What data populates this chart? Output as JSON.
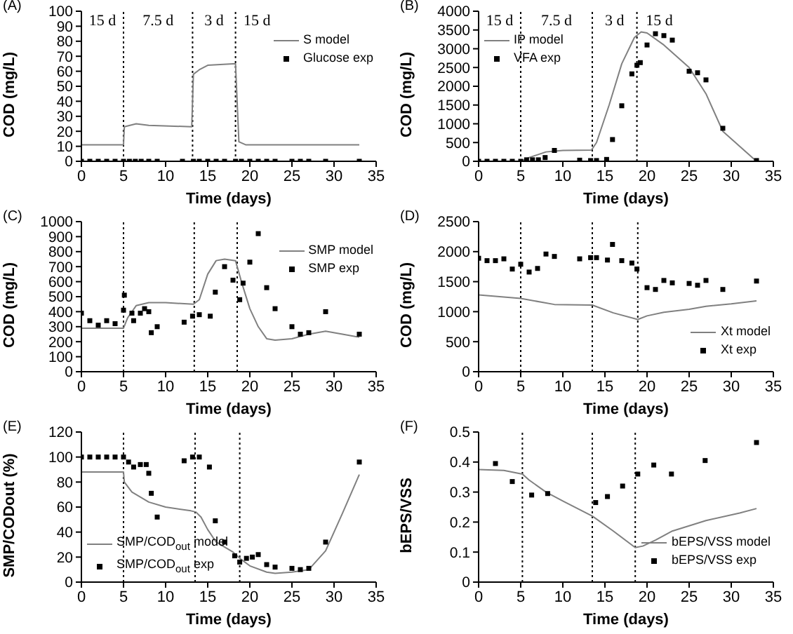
{
  "chart_data": [
    {
      "type": "line",
      "title": "(A)",
      "xlabel": "Time (days)",
      "ylabel": "COD (mg/L)",
      "xlim": [
        0,
        35
      ],
      "xticks": [
        0,
        5,
        10,
        15,
        20,
        25,
        30,
        35
      ],
      "ylim": [
        0,
        100
      ],
      "yticks": [
        0,
        10,
        20,
        30,
        40,
        50,
        60,
        70,
        80,
        90,
        100
      ],
      "grid": false,
      "legend": "top right",
      "annotations": [
        "15 d",
        "7.5 d",
        "3 d",
        "15 d"
      ],
      "ref_lines": [
        {
          "axis": "x",
          "value": 5,
          "color": "#000000",
          "line_style": "dotted"
        },
        {
          "axis": "x",
          "value": 13.2,
          "color": "#000000",
          "line_style": "dotted"
        },
        {
          "axis": "x",
          "value": 18.3,
          "color": "#000000",
          "line_style": "dotted"
        }
      ],
      "series": [
        {
          "name": "S model",
          "type": "line",
          "color": "#808080",
          "marker": "none",
          "x": [
            0,
            5,
            5.1,
            6.5,
            8,
            13.1,
            13.3,
            14,
            15,
            18,
            18.3,
            18.7,
            19.5,
            33
          ],
          "values": [
            11,
            11,
            23,
            25,
            24,
            23,
            58,
            61,
            64,
            65,
            65,
            13,
            11,
            11
          ]
        },
        {
          "name": "Glucose exp",
          "type": "scatter",
          "color": "#000000",
          "marker": "square",
          "x": [
            0,
            1,
            2,
            3,
            4,
            5,
            5.7,
            6.4,
            7.1,
            8,
            9,
            12,
            13.3,
            14,
            15,
            16,
            17,
            18.3,
            19,
            20,
            21,
            22,
            23,
            25,
            26,
            27,
            29,
            33
          ],
          "values": [
            0,
            0,
            0,
            0,
            0,
            0,
            0,
            0,
            0,
            0,
            0,
            0,
            0,
            0,
            0,
            0,
            0,
            0,
            0,
            0,
            0,
            0,
            0,
            0,
            0,
            0,
            0,
            0
          ]
        }
      ]
    },
    {
      "type": "line",
      "title": "(B)",
      "xlabel": "Time (days)",
      "ylabel": "COD (mg/L)",
      "xlim": [
        0,
        35
      ],
      "xticks": [
        0,
        5,
        10,
        15,
        20,
        25,
        30,
        35
      ],
      "ylim": [
        0,
        4000
      ],
      "yticks": [
        0,
        500,
        1000,
        1500,
        2000,
        2500,
        3000,
        3500,
        4000
      ],
      "grid": false,
      "legend": "top left",
      "annotations": [
        "15 d",
        "7.5 d",
        "3 d",
        "15 d"
      ],
      "ref_lines": [
        {
          "axis": "x",
          "value": 5,
          "color": "#000000",
          "line_style": "dotted"
        },
        {
          "axis": "x",
          "value": 13.5,
          "color": "#000000",
          "line_style": "dotted"
        },
        {
          "axis": "x",
          "value": 18.8,
          "color": "#000000",
          "line_style": "dotted"
        }
      ],
      "series": [
        {
          "name": "IP model",
          "type": "line",
          "color": "#808080",
          "marker": "none",
          "x": [
            0,
            5,
            6,
            8,
            10,
            13.4,
            14,
            15.5,
            17,
            18.5,
            19.3,
            20,
            22,
            25,
            27,
            29,
            33
          ],
          "values": [
            0,
            0,
            100,
            250,
            290,
            300,
            500,
            1500,
            2600,
            3300,
            3450,
            3420,
            3100,
            2500,
            1800,
            800,
            0
          ]
        },
        {
          "name": "VFA exp",
          "type": "scatter",
          "color": "#000000",
          "marker": "square",
          "x": [
            0,
            1,
            2,
            3,
            4,
            5,
            5.7,
            6.4,
            7.1,
            7.9,
            9,
            12,
            13.3,
            14,
            15.2,
            15.9,
            17,
            18.2,
            18.8,
            19.2,
            20,
            21,
            22,
            23,
            25,
            26,
            27,
            29,
            33
          ],
          "values": [
            0,
            0,
            0,
            0,
            0,
            0,
            40,
            40,
            40,
            100,
            290,
            30,
            20,
            20,
            50,
            580,
            1480,
            2330,
            2560,
            2630,
            3100,
            3400,
            3350,
            3230,
            2400,
            2360,
            2170,
            880,
            20
          ]
        }
      ]
    },
    {
      "type": "line",
      "title": "(C)",
      "xlabel": "Time (days)",
      "ylabel": "COD (mg/L)",
      "xlim": [
        0,
        35
      ],
      "xticks": [
        0,
        5,
        10,
        15,
        20,
        25,
        30,
        35
      ],
      "ylim": [
        0,
        1000
      ],
      "yticks": [
        0,
        100,
        200,
        300,
        400,
        500,
        600,
        700,
        800,
        900,
        1000
      ],
      "grid": false,
      "legend": "top right",
      "ref_lines": [
        {
          "axis": "x",
          "value": 5,
          "color": "#000000",
          "line_style": "dotted"
        },
        {
          "axis": "x",
          "value": 13.4,
          "color": "#000000",
          "line_style": "dotted"
        },
        {
          "axis": "x",
          "value": 18.5,
          "color": "#000000",
          "line_style": "dotted"
        }
      ],
      "series": [
        {
          "name": "SMP model",
          "type": "line",
          "color": "#808080",
          "marker": "none",
          "x": [
            0,
            5,
            5.5,
            6.5,
            8,
            10,
            13.3,
            14,
            15,
            16,
            17,
            18.3,
            19,
            20,
            21,
            22,
            23,
            25,
            27,
            29,
            31,
            33
          ],
          "values": [
            290,
            290,
            360,
            440,
            460,
            460,
            450,
            480,
            650,
            740,
            750,
            740,
            600,
            420,
            300,
            220,
            210,
            220,
            250,
            270,
            250,
            230
          ]
        },
        {
          "name": "SMP exp",
          "type": "scatter",
          "color": "#000000",
          "marker": "square",
          "x": [
            0,
            1,
            2,
            3,
            4,
            5,
            5.1,
            6,
            6.2,
            7,
            7.5,
            8,
            8.3,
            9,
            12.2,
            13.2,
            14,
            15.3,
            15.9,
            17,
            18,
            18.8,
            19.2,
            20,
            21,
            22,
            23,
            25,
            26,
            27,
            29,
            33
          ],
          "values": [
            390,
            340,
            310,
            340,
            320,
            410,
            510,
            390,
            340,
            390,
            420,
            400,
            260,
            300,
            330,
            370,
            380,
            370,
            530,
            700,
            610,
            480,
            590,
            730,
            920,
            560,
            420,
            300,
            250,
            260,
            400,
            250
          ]
        }
      ]
    },
    {
      "type": "line",
      "title": "(D)",
      "xlabel": "Time (days)",
      "ylabel": "COD (mg/L)",
      "xlim": [
        0,
        35
      ],
      "xticks": [
        0,
        5,
        10,
        15,
        20,
        25,
        30,
        35
      ],
      "ylim": [
        0,
        2500
      ],
      "yticks": [
        0,
        500,
        1000,
        1500,
        2000,
        2500
      ],
      "grid": false,
      "legend": "bottom right",
      "ref_lines": [
        {
          "axis": "x",
          "value": 5,
          "color": "#000000",
          "line_style": "dotted"
        },
        {
          "axis": "x",
          "value": 13.5,
          "color": "#000000",
          "line_style": "dotted"
        },
        {
          "axis": "x",
          "value": 18.9,
          "color": "#000000",
          "line_style": "dotted"
        }
      ],
      "series": [
        {
          "name": "Xt model",
          "type": "line",
          "color": "#808080",
          "marker": "none",
          "x": [
            0,
            5,
            9,
            13.5,
            16,
            18.9,
            20,
            22,
            25,
            27,
            30,
            33
          ],
          "values": [
            1280,
            1220,
            1120,
            1110,
            980,
            870,
            930,
            990,
            1040,
            1090,
            1130,
            1180
          ]
        },
        {
          "name": "Xt exp",
          "type": "scatter",
          "color": "#000000",
          "marker": "square",
          "x": [
            0,
            1,
            2,
            3,
            4,
            5,
            6,
            7,
            8,
            9,
            12,
            13.3,
            14,
            15.3,
            15.9,
            17,
            18.2,
            18.8,
            20,
            21,
            22,
            23,
            25,
            26,
            27,
            29,
            33
          ],
          "values": [
            1890,
            1850,
            1850,
            1880,
            1710,
            1790,
            1660,
            1720,
            1960,
            1920,
            1880,
            1900,
            1900,
            1860,
            2120,
            1850,
            1810,
            1710,
            1400,
            1370,
            1520,
            1480,
            1470,
            1440,
            1520,
            1370,
            1510
          ]
        }
      ]
    },
    {
      "type": "line",
      "title": "(E)",
      "xlabel": "Time (days)",
      "ylabel": "SMP/CODout (%)",
      "xlim": [
        0,
        35
      ],
      "xticks": [
        0,
        5,
        10,
        15,
        20,
        25,
        30,
        35
      ],
      "ylim": [
        0,
        120
      ],
      "yticks": [
        0,
        20,
        40,
        60,
        80,
        100,
        120
      ],
      "grid": false,
      "legend": "bottom left",
      "ref_lines": [
        {
          "axis": "x",
          "value": 5,
          "color": "#000000",
          "line_style": "dotted"
        },
        {
          "axis": "x",
          "value": 13.5,
          "color": "#000000",
          "line_style": "dotted"
        },
        {
          "axis": "x",
          "value": 18.8,
          "color": "#000000",
          "line_style": "dotted"
        }
      ],
      "series": [
        {
          "name": "SMP/COD$_{out}$ model",
          "type": "line",
          "color": "#808080",
          "marker": "none",
          "x": [
            0,
            5,
            5.1,
            6,
            8,
            10,
            13,
            13.6,
            14.2,
            15,
            16,
            18,
            19,
            20,
            22,
            23,
            25,
            27,
            29,
            31,
            33
          ],
          "values": [
            88,
            88,
            80,
            72,
            64,
            60,
            57,
            56,
            52,
            42,
            32,
            24,
            18,
            13,
            8,
            7,
            8,
            10,
            25,
            55,
            86
          ]
        },
        {
          "name": "SMP/COD$_{out}$ exp",
          "type": "scatter",
          "color": "#000000",
          "marker": "square",
          "x": [
            0,
            1,
            2,
            3,
            4,
            5,
            5.6,
            6.2,
            7,
            7.7,
            8,
            8.3,
            9,
            12.2,
            13.2,
            14,
            15.2,
            15.9,
            17,
            18.2,
            18.8,
            19.6,
            20.3,
            21,
            22,
            23,
            25,
            26,
            27,
            29,
            33
          ],
          "values": [
            100,
            100,
            100,
            100,
            100,
            100,
            96,
            92,
            94,
            94,
            87,
            71,
            52,
            97,
            100,
            100,
            92,
            49,
            32,
            21,
            16,
            19,
            20,
            22,
            14,
            12,
            11,
            10,
            11,
            32,
            96
          ]
        }
      ]
    },
    {
      "type": "line",
      "title": "(F)",
      "xlabel": "Time (days)",
      "ylabel": "bEPS/VSS",
      "xlim": [
        0,
        35
      ],
      "xticks": [
        0,
        5,
        10,
        15,
        20,
        25,
        30,
        35
      ],
      "ylim": [
        0,
        0.5
      ],
      "yticks": [
        0,
        0.1,
        0.2,
        0.3,
        0.4,
        0.5
      ],
      "grid": false,
      "legend": "bottom right",
      "ref_lines": [
        {
          "axis": "x",
          "value": 5.2,
          "color": "#000000",
          "line_style": "dotted"
        },
        {
          "axis": "x",
          "value": 13.5,
          "color": "#000000",
          "line_style": "dotted"
        },
        {
          "axis": "x",
          "value": 18.6,
          "color": "#000000",
          "line_style": "dotted"
        }
      ],
      "series": [
        {
          "name": "bEPS/VSS model",
          "type": "line",
          "color": "#808080",
          "marker": "none",
          "x": [
            0,
            3,
            5.2,
            6,
            8,
            10,
            13.5,
            14,
            16,
            18.6,
            19.5,
            21,
            23,
            27,
            31,
            33
          ],
          "values": [
            0.375,
            0.372,
            0.36,
            0.34,
            0.3,
            0.27,
            0.22,
            0.21,
            0.17,
            0.115,
            0.12,
            0.14,
            0.17,
            0.205,
            0.23,
            0.245
          ]
        },
        {
          "name": "bEPS/VSS exp",
          "type": "scatter",
          "color": "#000000",
          "marker": "square",
          "x": [
            2,
            4,
            6.3,
            8.2,
            13.9,
            15.3,
            17.1,
            18.9,
            20.8,
            22.9,
            26.9,
            33
          ],
          "values": [
            0.395,
            0.335,
            0.29,
            0.295,
            0.265,
            0.285,
            0.32,
            0.36,
            0.39,
            0.36,
            0.405,
            0.465
          ]
        }
      ]
    }
  ]
}
